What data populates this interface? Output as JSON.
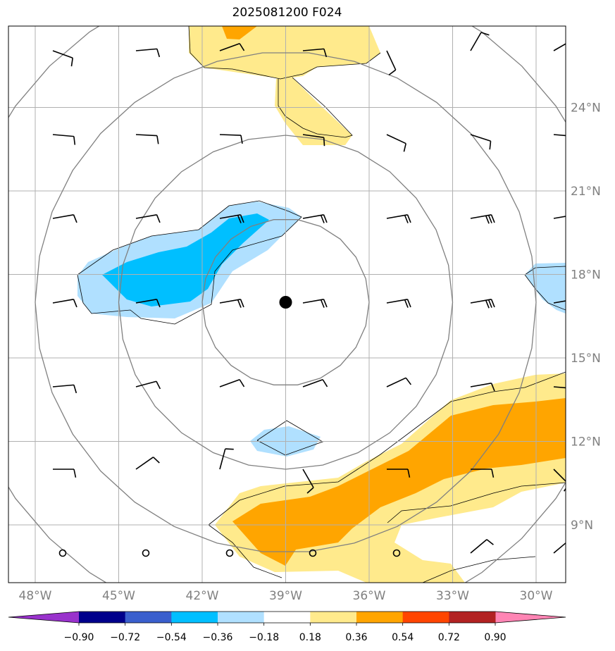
{
  "title": "2025081200 F024",
  "colors": {
    "land": "#ffffff",
    "grid": "#b0b0b0",
    "range_rings": "#808080",
    "tick_text": "#808080",
    "storm_center": "#000000"
  },
  "map": {
    "lon_ticks": [
      {
        "lon": -48,
        "label": "48°W"
      },
      {
        "lon": -45,
        "label": "45°W"
      },
      {
        "lon": -42,
        "label": "42°W"
      },
      {
        "lon": -39,
        "label": "39°W"
      },
      {
        "lon": -36,
        "label": "36°W"
      },
      {
        "lon": -33,
        "label": "33°W"
      },
      {
        "lon": -30,
        "label": "30°W"
      }
    ],
    "lat_ticks": [
      {
        "lat": 9,
        "label": "9°N"
      },
      {
        "lat": 12,
        "label": "12°N"
      },
      {
        "lat": 15,
        "label": "15°N"
      },
      {
        "lat": 18,
        "label": "18°N"
      },
      {
        "lat": 21,
        "label": "21°N"
      },
      {
        "lat": 24,
        "label": "24°N"
      }
    ],
    "lon_range": [
      -49,
      -29
    ],
    "lat_range": [
      7,
      27
    ],
    "storm_center": {
      "lon": -39,
      "lat": 17
    },
    "range_rings_deg": [
      3,
      6,
      9,
      12
    ]
  },
  "colorbar": {
    "levels": [
      -0.9,
      -0.72,
      -0.54,
      -0.36,
      -0.18,
      0.18,
      0.36,
      0.54,
      0.72,
      0.9
    ],
    "labels": [
      "−0.90",
      "−0.72",
      "−0.54",
      "−0.36",
      "−0.18",
      "0.18",
      "0.36",
      "0.54",
      "0.72",
      "0.90"
    ],
    "under_color": "#9932cc",
    "over_color": "#ff85b4",
    "colors": [
      "#00008b",
      "#3a5fcd",
      "#00bfff",
      "#b0e0ff",
      "#ffffff",
      "#ffea8c",
      "#ffa500",
      "#ff4500",
      "#b22222"
    ]
  },
  "shading": {
    "light_blue": "#b0e0ff",
    "deep_sky": "#00bfff",
    "light_yellow": "#ffea8c",
    "orange": "#ffa500"
  }
}
